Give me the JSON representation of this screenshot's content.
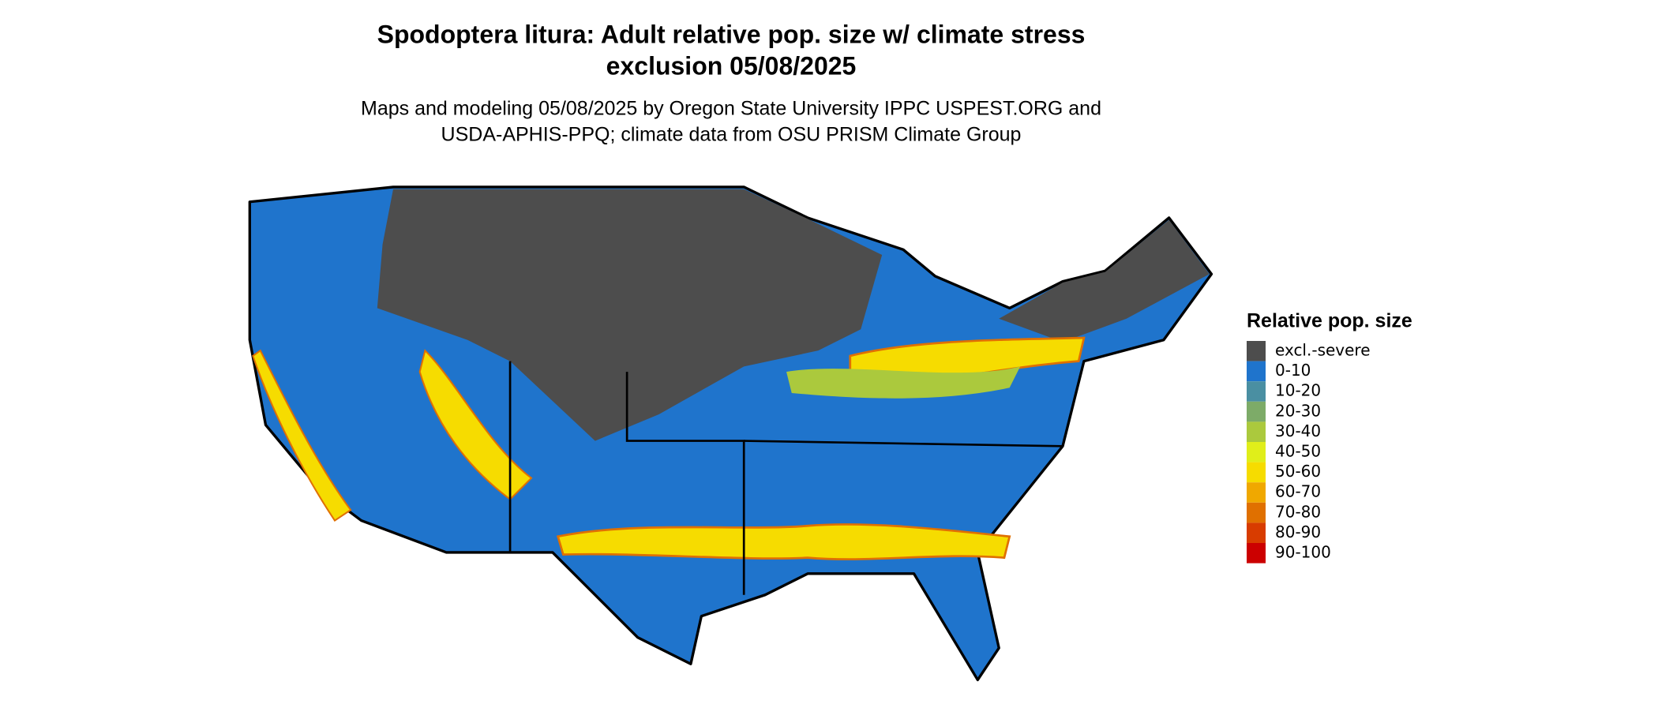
{
  "title": [
    "Spodoptera litura: Adult relative pop. size w/ climate stress",
    "exclusion 05/08/2025"
  ],
  "subtitle": [
    "Maps and modeling 05/08/2025 by Oregon State University IPPC USPEST.ORG and",
    "USDA-APHIS-PPQ; climate data from OSU PRISM Climate Group"
  ],
  "legend": {
    "title": "Relative pop. size",
    "items": [
      {
        "label": "excl.-severe",
        "color": "#4d4d4d"
      },
      {
        "label": "0-10",
        "color": "#1f74cc"
      },
      {
        "label": "10-20",
        "color": "#4a8fa2"
      },
      {
        "label": "20-30",
        "color": "#7dab68"
      },
      {
        "label": "30-40",
        "color": "#abc93d"
      },
      {
        "label": "40-50",
        "color": "#e0ee1a"
      },
      {
        "label": "50-60",
        "color": "#f6dc00"
      },
      {
        "label": "60-70",
        "color": "#f0a800"
      },
      {
        "label": "70-80",
        "color": "#e07000"
      },
      {
        "label": "80-90",
        "color": "#d83c00"
      },
      {
        "label": "90-100",
        "color": "#cc0000"
      }
    ]
  }
}
